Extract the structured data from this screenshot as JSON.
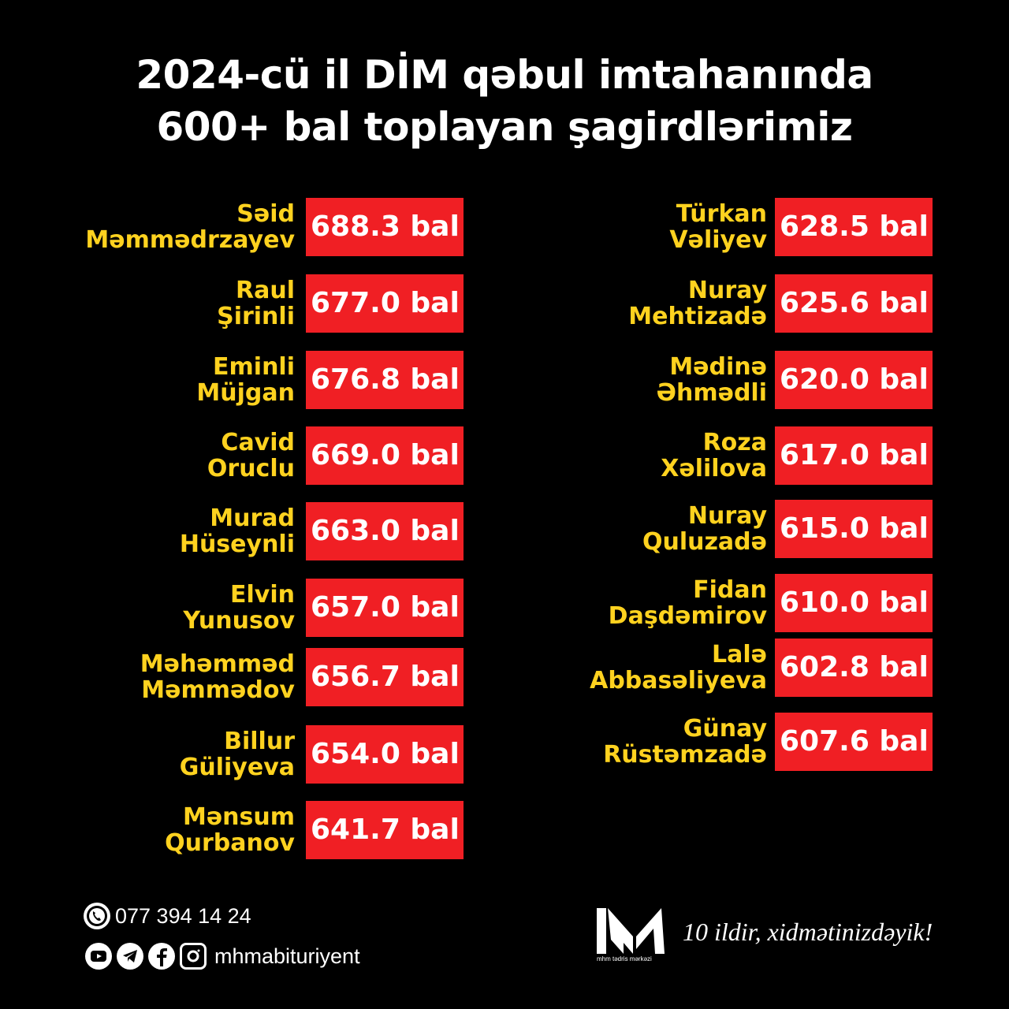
{
  "title": {
    "line1": "2024-cü il DİM qəbul imtahanında",
    "line2": "600+ bal toplayan şagirdlərimiz"
  },
  "left_students": [
    {
      "first": "Səid",
      "last": "Məmmədrzayev",
      "score": "688.3 bal"
    },
    {
      "first": "Raul",
      "last": "Şirinli",
      "score": "677.0 bal"
    },
    {
      "first": "Eminli",
      "last": "Müjgan",
      "score": "676.8 bal"
    },
    {
      "first": "Cavid",
      "last": "Oruclu",
      "score": "669.0 bal"
    },
    {
      "first": "Murad",
      "last": "Hüseynli",
      "score": "663.0 bal"
    },
    {
      "first": "Elvin",
      "last": "Yunusov",
      "score": "657.0 bal"
    },
    {
      "first": "Məhəmməd",
      "last": "Məmmədov",
      "score": "656.7 bal"
    },
    {
      "first": "Billur",
      "last": "Güliyeva",
      "score": "654.0 bal"
    },
    {
      "first": "Mənsum",
      "last": "Qurbanov",
      "score": "641.7 bal"
    }
  ],
  "right_students": [
    {
      "first": "Türkan",
      "last": "Vəliyev",
      "score": "628.5 bal"
    },
    {
      "first": "Nuray",
      "last": "Mehtizadə",
      "score": "625.6 bal"
    },
    {
      "first": "Mədinə",
      "last": "Əhmədli",
      "score": "620.0 bal"
    },
    {
      "first": "Roza",
      "last": "Xəlilova",
      "score": "617.0 bal"
    },
    {
      "first": "Nuray",
      "last": "Quluzadə",
      "score": "615.0 bal"
    },
    {
      "first": "Fidan",
      "last": "Daşdəmirov",
      "score": "610.0 bal"
    },
    {
      "first": "Lalə",
      "last": "Abbasəliyeva",
      "score": "602.8 bal"
    },
    {
      "first": "Günay",
      "last": "Rüstəmzadə",
      "score": "607.6 bal"
    }
  ],
  "contact": {
    "phone": "077 394 14 24",
    "social_handle": "mhmabituriyent",
    "icons": [
      "whatsapp-icon",
      "youtube-icon",
      "telegram-icon",
      "facebook-icon",
      "instagram-icon"
    ]
  },
  "brand": {
    "logo_text": "mhm tədris mərkəzi",
    "slogan": "10 ildir, xidmətinizdəyik!"
  },
  "colors": {
    "background": "#000000",
    "name_color": "#ffd21f",
    "score_bg": "#f01f24",
    "text": "#ffffff"
  }
}
